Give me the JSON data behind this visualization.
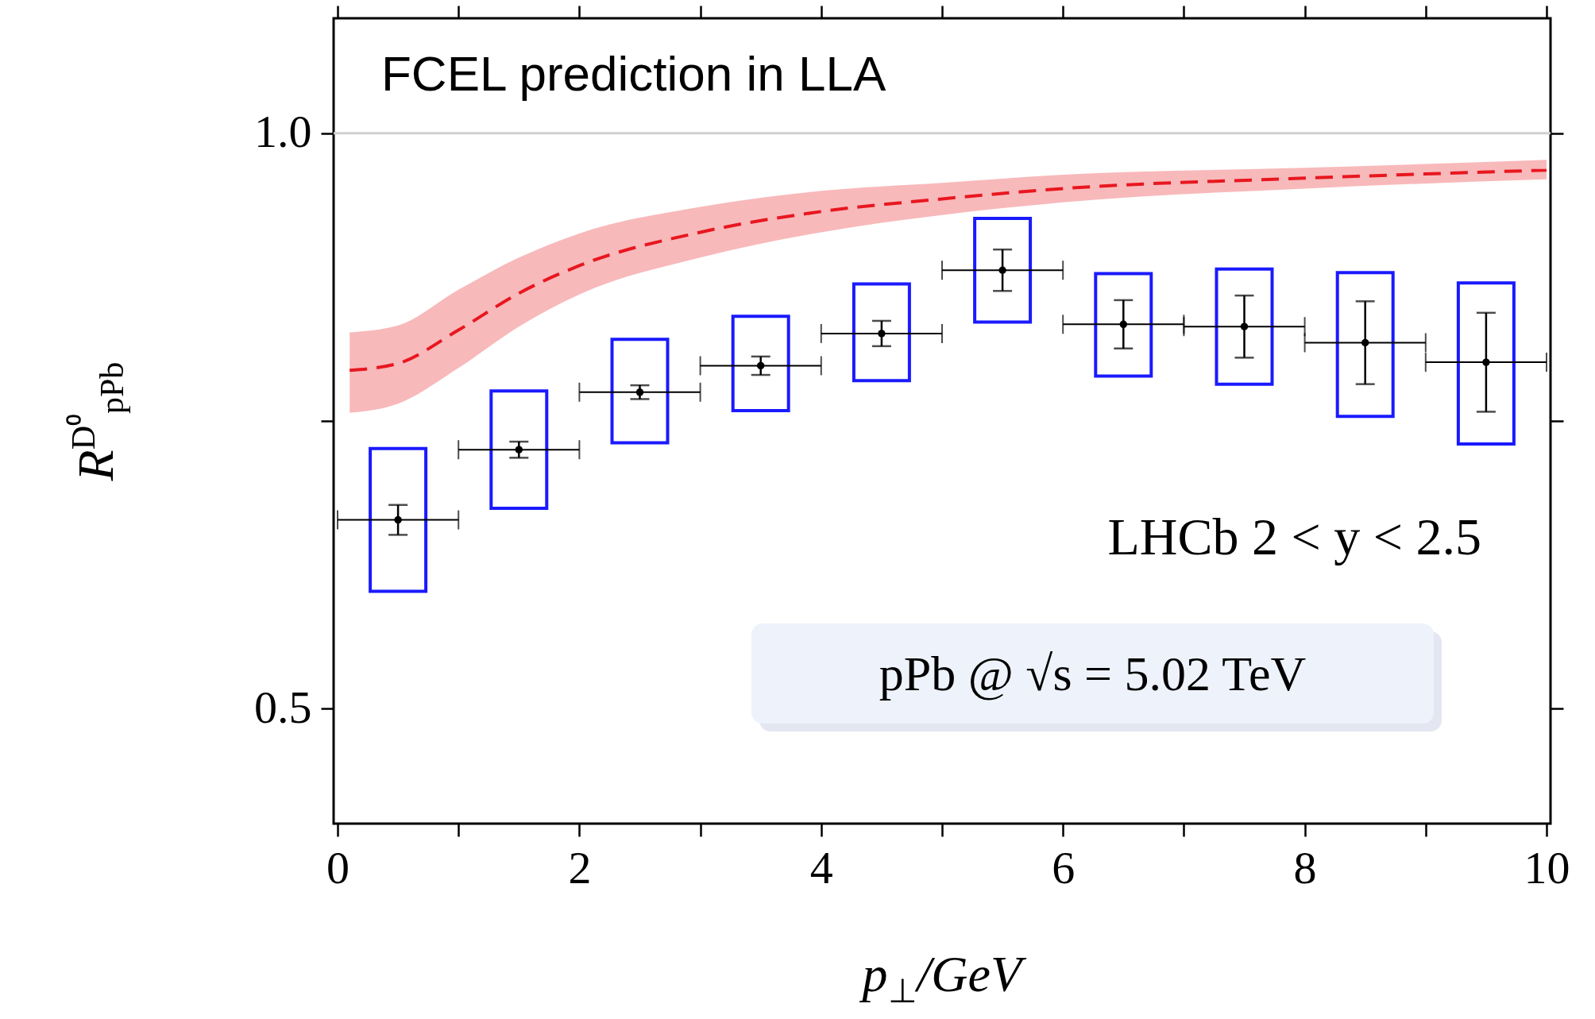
{
  "chart_data": {
    "type": "scatter",
    "xlabel": "p$_{⊥}$/GeV",
    "ylabel": "R$^{D⁰}$$_{pPb}$",
    "annotations": [
      "FCEL prediction in LLA",
      "LHCb  2 < y < 2.5",
      "pPb @ √s = 5.02 TeV"
    ],
    "xlim": [
      0,
      10
    ],
    "ylim": [
      0.4,
      1.1
    ],
    "xticks": [
      0,
      {
        "value": 1,
        "label": null
      },
      2,
      {
        "value": 3,
        "label": null
      },
      4,
      {
        "value": 5,
        "label": null
      },
      6,
      {
        "value": 7,
        "label": null
      },
      8,
      {
        "value": 9,
        "label": null
      },
      10
    ],
    "yticks": [
      0.5,
      {
        "value": 0.75,
        "label": null
      },
      {
        "value": 1,
        "label": "1.0"
      }
    ],
    "grid": false,
    "ref_lines": [
      {
        "axis": "y",
        "value": 1,
        "color": "#d0d0d0"
      }
    ],
    "series": [
      {
        "type": "line",
        "color": "#e8171f",
        "line_style": "dashed",
        "marker": "none",
        "x": [
          0.1,
          0.5,
          1,
          1.5,
          2,
          3,
          4,
          5,
          6,
          8,
          10
        ],
        "values": [
          0.794,
          0.8,
          0.829,
          0.861,
          0.885,
          0.914,
          0.932,
          0.943,
          0.952,
          0.961,
          0.968
        ],
        "lower": [
          0.757,
          0.765,
          0.796,
          0.832,
          0.86,
          0.892,
          0.914,
          0.929,
          0.94,
          0.952,
          0.96
        ],
        "upper": [
          0.827,
          0.833,
          0.864,
          0.892,
          0.913,
          0.936,
          0.95,
          0.957,
          0.964,
          0.97,
          0.977
        ]
      },
      {
        "type": "bar",
        "color": "#1a1aff",
        "x": [
          0.5,
          1.5,
          2.5,
          3.5,
          4.5,
          5.5,
          6.5,
          7.5,
          8.5,
          9.5
        ],
        "base": [
          0.602,
          0.674,
          0.731,
          0.759,
          0.785,
          0.836,
          0.789,
          0.782,
          0.754,
          0.73
        ],
        "values": [
          0.124,
          0.102,
          0.09,
          0.082,
          0.084,
          0.09,
          0.089,
          0.1,
          0.125,
          0.14
        ]
      },
      {
        "color": "#000000",
        "marker": "circle",
        "x": [
          0.5,
          1.5,
          2.5,
          3.5,
          4.5,
          5.5,
          6.5,
          7.5,
          8.5,
          9.5
        ],
        "values": [
          0.664,
          0.725,
          0.775,
          0.798,
          0.826,
          0.881,
          0.834,
          0.832,
          0.818,
          0.801
        ],
        "errors": [
          0.013,
          0.007,
          0.006,
          0.008,
          0.011,
          0.018,
          0.021,
          0.027,
          0.036,
          0.043
        ],
        "xerrors": [
          0.5,
          0.5,
          0.5,
          0.5,
          0.5,
          0.5,
          0.5,
          0.5,
          0.5,
          0.5
        ]
      }
    ]
  }
}
